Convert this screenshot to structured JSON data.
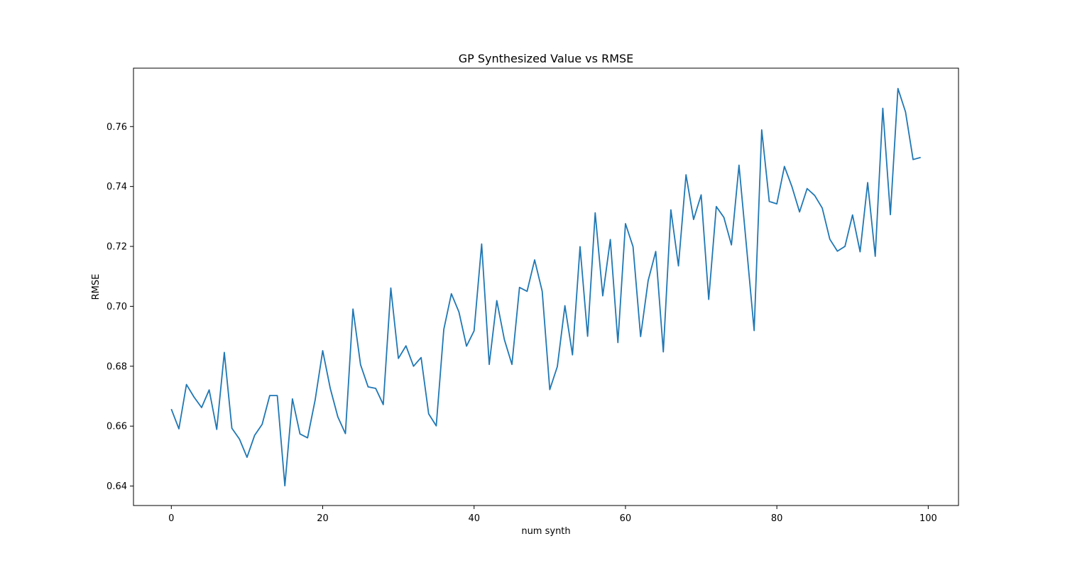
{
  "chart_data": {
    "type": "line",
    "title": "GP Synthesized Value vs RMSE",
    "xlabel": "num synth",
    "ylabel": "RMSE",
    "xlim": [
      -5,
      104
    ],
    "ylim": [
      0.6335,
      0.7795
    ],
    "xticks": [
      0,
      20,
      40,
      60,
      80,
      100
    ],
    "xtick_labels": [
      "0",
      "20",
      "40",
      "60",
      "80",
      "100"
    ],
    "yticks": [
      0.64,
      0.66,
      0.68,
      0.7,
      0.72,
      0.74,
      0.76
    ],
    "ytick_labels": [
      "0.64",
      "0.66",
      "0.68",
      "0.70",
      "0.72",
      "0.74",
      "0.76"
    ],
    "grid": false,
    "legend": "none",
    "line_color": "#1f77b4",
    "series": [
      {
        "x": [
          0,
          1,
          2,
          3,
          4,
          5,
          6,
          7,
          8,
          9,
          10,
          11,
          12,
          13,
          14,
          15,
          16,
          17,
          18,
          19,
          20,
          21,
          22,
          23,
          24,
          25,
          26,
          27,
          28,
          29,
          30,
          31,
          32,
          33,
          34,
          35,
          36,
          37,
          38,
          39,
          40,
          41,
          42,
          43,
          44,
          45,
          46,
          47,
          48,
          49,
          50,
          51,
          52,
          53,
          54,
          55,
          56,
          57,
          58,
          59,
          60,
          61,
          62,
          63,
          64,
          65,
          66,
          67,
          68,
          69,
          70,
          71,
          72,
          73,
          74,
          75,
          76,
          77,
          78,
          79,
          80,
          81,
          82,
          83,
          84,
          85,
          86,
          87,
          88,
          89,
          90,
          91,
          92,
          93,
          94,
          95,
          96,
          97,
          98,
          99
        ],
        "values": [
          0.6657,
          0.6591,
          0.6739,
          0.6697,
          0.6662,
          0.6721,
          0.6589,
          0.6846,
          0.6593,
          0.6557,
          0.6496,
          0.6569,
          0.6606,
          0.6702,
          0.6702,
          0.6401,
          0.6691,
          0.6574,
          0.6561,
          0.6687,
          0.6852,
          0.6726,
          0.6631,
          0.6575,
          0.6991,
          0.6805,
          0.6731,
          0.6726,
          0.6672,
          0.7061,
          0.6826,
          0.6868,
          0.68,
          0.6829,
          0.6641,
          0.6601,
          0.6923,
          0.7042,
          0.6981,
          0.6867,
          0.6918,
          0.7208,
          0.6806,
          0.7019,
          0.6889,
          0.6806,
          0.7063,
          0.705,
          0.7155,
          0.705,
          0.6722,
          0.6799,
          0.7002,
          0.6838,
          0.7199,
          0.69,
          0.7312,
          0.7035,
          0.7223,
          0.6879,
          0.7276,
          0.7199,
          0.6899,
          0.7086,
          0.7183,
          0.6848,
          0.7322,
          0.7135,
          0.7439,
          0.729,
          0.7372,
          0.7023,
          0.7333,
          0.7297,
          0.7205,
          0.7471,
          0.7197,
          0.6919,
          0.7589,
          0.735,
          0.7342,
          0.7467,
          0.7399,
          0.7315,
          0.7393,
          0.737,
          0.7328,
          0.7224,
          0.7184,
          0.72,
          0.7305,
          0.7182,
          0.7413,
          0.7167,
          0.7661,
          0.7306,
          0.7727,
          0.7649,
          0.749,
          0.7497
        ]
      }
    ]
  }
}
